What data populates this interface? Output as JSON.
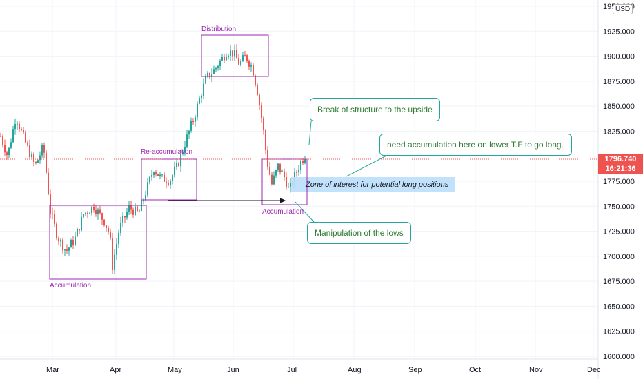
{
  "chart_data": {
    "type": "candlestick",
    "x_ticks": [
      "Mar",
      "Apr",
      "May",
      "Jun",
      "Jul",
      "Aug",
      "Sep",
      "Oct",
      "Nov",
      "Dec"
    ],
    "y_ticks": [
      "1950.000",
      "1925.000",
      "1900.000",
      "1875.000",
      "1850.000",
      "1825.000",
      "1800.000",
      "1775.000",
      "1750.000",
      "1725.000",
      "1700.000",
      "1675.000",
      "1650.000",
      "1625.000",
      "1600.000"
    ],
    "ylim": [
      1600,
      1950
    ],
    "last_price": "1796.740",
    "countdown": "16:21:36",
    "currency": "USD",
    "annotations": {
      "boxes": [
        "Accumulation",
        "Re-accumulation",
        "Distribution",
        "Accumulation"
      ],
      "callouts": [
        "Break of structure to the upside",
        "need accumulation here on lower T.F to go long.",
        "Manipulation of the lows"
      ],
      "zone": "Zone of interest for potential long positions"
    },
    "colors": {
      "up": "#26a69a",
      "down": "#ef5350",
      "box": "#9c27b0",
      "zone": "#bbdefb",
      "callout_border": "#26a69a",
      "callout_text": "#2e7d32"
    },
    "grid": true
  }
}
